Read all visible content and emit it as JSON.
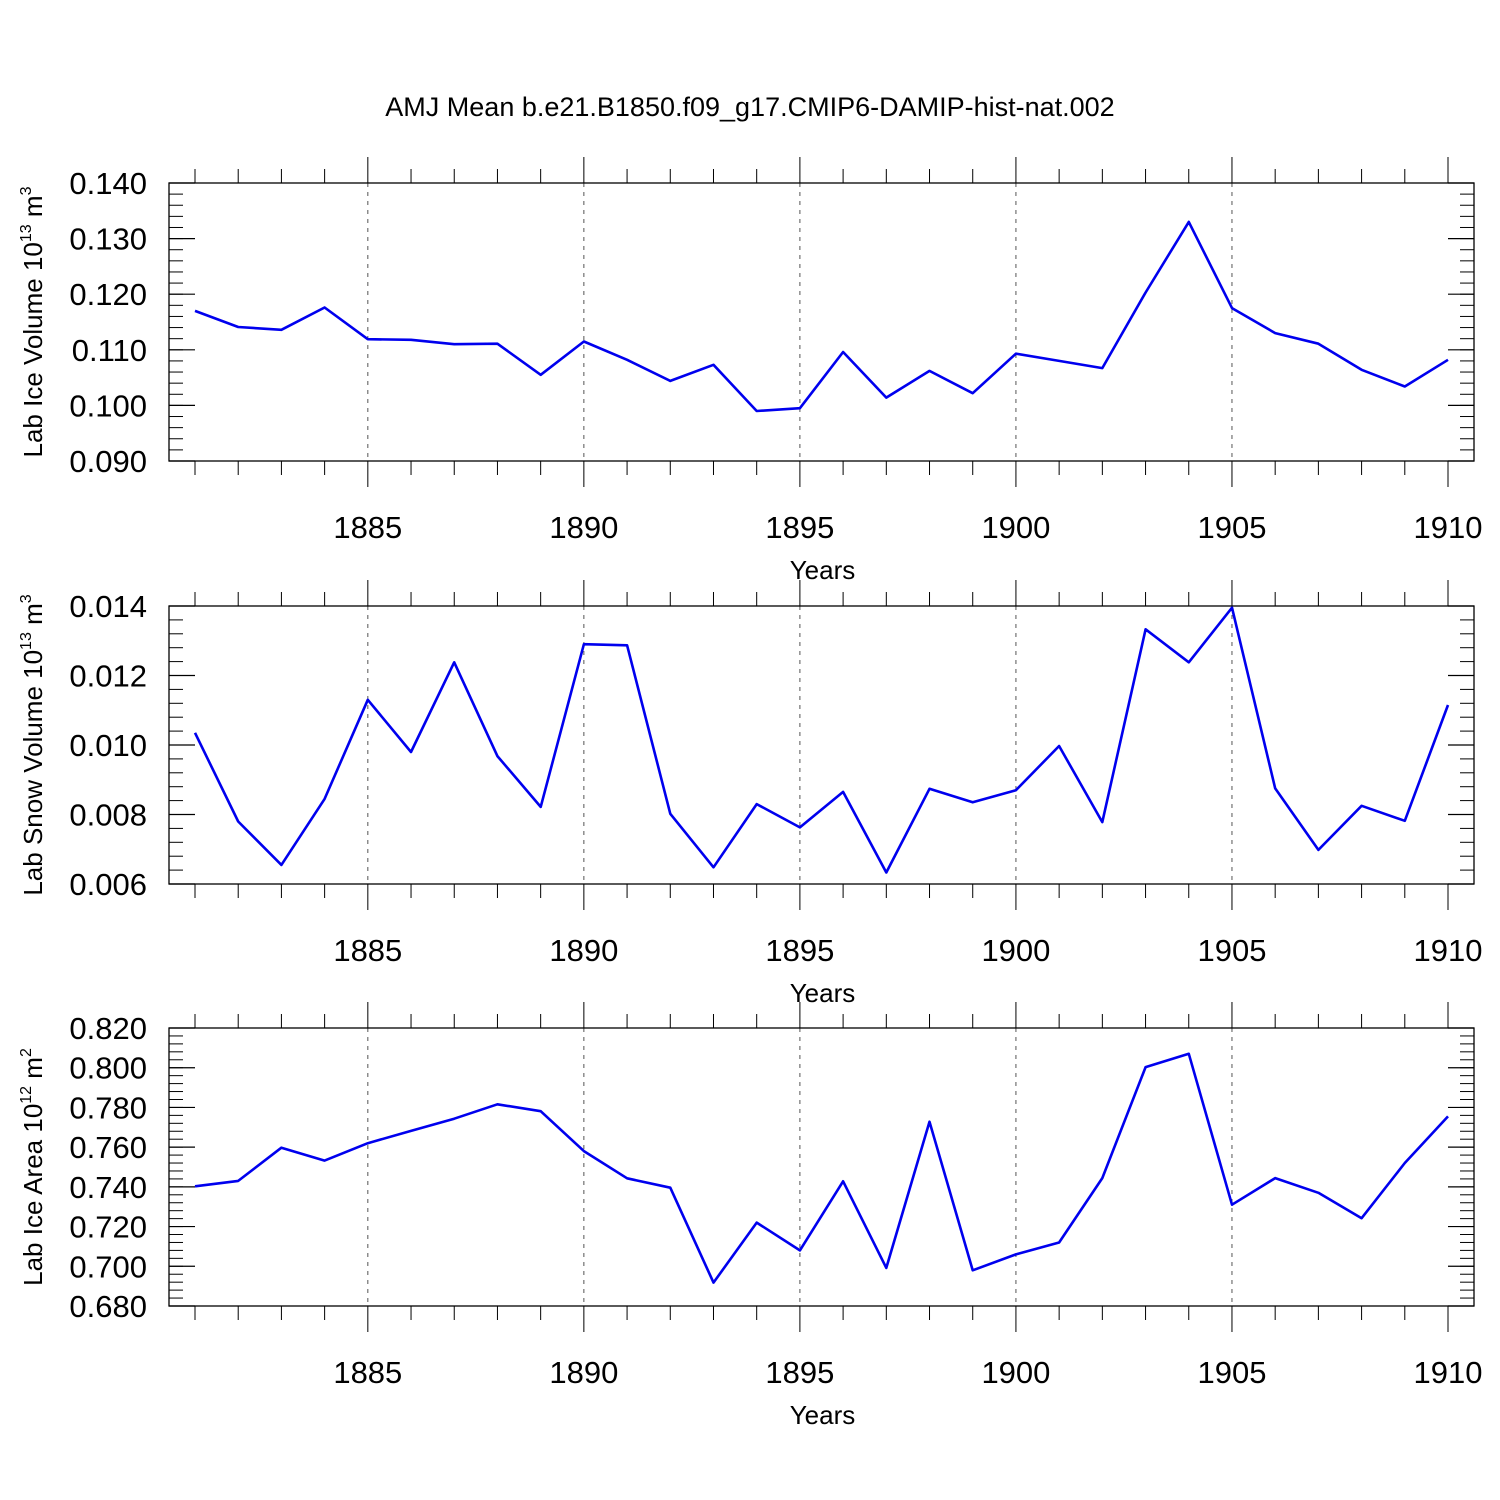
{
  "title": "AMJ Mean b.e21.B1850.f09_g17.CMIP6-DAMIP-hist-nat.002",
  "line_color": "#0000ee",
  "chart_data": [
    {
      "type": "line",
      "title": "AMJ Mean b.e21.B1850.f09_g17.CMIP6-DAMIP-hist-nat.002",
      "ylabel": {
        "text": "Lab Ice Volume 10",
        "exp": "13",
        "unit": " m",
        "unit_exp": "3"
      },
      "xlabel": "Years",
      "xlim": [
        1881,
        1910
      ],
      "ylim": [
        0.09,
        0.14
      ],
      "xticks": [
        1885,
        1890,
        1895,
        1900,
        1905,
        1910
      ],
      "xtick_labels": [
        "1885",
        "1890",
        "1895",
        "1900",
        "1905",
        "1910"
      ],
      "yticks": [
        0.09,
        0.1,
        0.11,
        0.12,
        0.13,
        0.14
      ],
      "ytick_labels": [
        "0.090",
        "0.100",
        "0.110",
        "0.120",
        "0.130",
        "0.140"
      ],
      "y_minor_step": 0.002,
      "grid": "dashed vertical at major x ticks",
      "series": [
        {
          "name": "Lab Ice Volume",
          "x": [
            1881,
            1882,
            1883,
            1884,
            1885,
            1886,
            1887,
            1888,
            1889,
            1890,
            1891,
            1892,
            1893,
            1894,
            1895,
            1896,
            1897,
            1898,
            1899,
            1900,
            1901,
            1902,
            1903,
            1904,
            1905,
            1906,
            1907,
            1908,
            1909,
            1910
          ],
          "y": [
            0.117,
            0.1141,
            0.1136,
            0.1176,
            0.1119,
            0.1118,
            0.111,
            0.1111,
            0.1055,
            0.1115,
            0.1082,
            0.1044,
            0.1073,
            0.099,
            0.0995,
            0.1096,
            0.1014,
            0.1062,
            0.1022,
            0.1093,
            0.108,
            0.1067,
            0.1203,
            0.133,
            0.1175,
            0.113,
            0.1111,
            0.1064,
            0.1034,
            0.1082
          ]
        }
      ]
    },
    {
      "type": "line",
      "ylabel": {
        "text": "Lab Snow Volume 10",
        "exp": "13",
        "unit": " m",
        "unit_exp": "3"
      },
      "xlabel": "Years",
      "xlim": [
        1881,
        1910
      ],
      "ylim": [
        0.006,
        0.014
      ],
      "xticks": [
        1885,
        1890,
        1895,
        1900,
        1905,
        1910
      ],
      "xtick_labels": [
        "1885",
        "1890",
        "1895",
        "1900",
        "1905",
        "1910"
      ],
      "yticks": [
        0.006,
        0.008,
        0.01,
        0.012,
        0.014
      ],
      "ytick_labels": [
        "0.006",
        "0.008",
        "0.010",
        "0.012",
        "0.014"
      ],
      "y_minor_step": 0.0004,
      "grid": "dashed vertical at major x ticks",
      "series": [
        {
          "name": "Lab Snow Volume",
          "x": [
            1881,
            1882,
            1883,
            1884,
            1885,
            1886,
            1887,
            1888,
            1889,
            1890,
            1891,
            1892,
            1893,
            1894,
            1895,
            1896,
            1897,
            1898,
            1899,
            1900,
            1901,
            1902,
            1903,
            1904,
            1905,
            1906,
            1907,
            1908,
            1909,
            1910
          ],
          "y": [
            0.01035,
            0.0078,
            0.00655,
            0.00845,
            0.0113,
            0.0098,
            0.01238,
            0.00968,
            0.00822,
            0.0129,
            0.01287,
            0.00802,
            0.00648,
            0.0083,
            0.00763,
            0.00865,
            0.00633,
            0.00874,
            0.00835,
            0.0087,
            0.00997,
            0.00778,
            0.01333,
            0.01238,
            0.01395,
            0.00875,
            0.00698,
            0.00825,
            0.00782,
            0.01115
          ]
        }
      ]
    },
    {
      "type": "line",
      "ylabel": {
        "text": "Lab Ice Area 10",
        "exp": "12",
        "unit": " m",
        "unit_exp": "2"
      },
      "xlabel": "Years",
      "xlim": [
        1881,
        1910
      ],
      "ylim": [
        0.68,
        0.82
      ],
      "xticks": [
        1885,
        1890,
        1895,
        1900,
        1905,
        1910
      ],
      "xtick_labels": [
        "1885",
        "1890",
        "1895",
        "1900",
        "1905",
        "1910"
      ],
      "yticks": [
        0.68,
        0.7,
        0.72,
        0.74,
        0.76,
        0.78,
        0.8,
        0.82
      ],
      "ytick_labels": [
        "0.680",
        "0.700",
        "0.720",
        "0.740",
        "0.760",
        "0.780",
        "0.800",
        "0.820"
      ],
      "y_minor_step": 0.004,
      "grid": "dashed vertical at major x ticks",
      "series": [
        {
          "name": "Lab Ice Area",
          "x": [
            1881,
            1882,
            1883,
            1884,
            1885,
            1886,
            1887,
            1888,
            1889,
            1890,
            1891,
            1892,
            1893,
            1894,
            1895,
            1896,
            1897,
            1898,
            1899,
            1900,
            1901,
            1902,
            1903,
            1904,
            1905,
            1906,
            1907,
            1908,
            1909,
            1910
          ],
          "y": [
            0.7403,
            0.743,
            0.7597,
            0.7532,
            0.762,
            0.7682,
            0.7743,
            0.7816,
            0.7781,
            0.758,
            0.7443,
            0.7396,
            0.6918,
            0.722,
            0.708,
            0.7428,
            0.6992,
            0.7728,
            0.698,
            0.706,
            0.712,
            0.7444,
            0.8003,
            0.807,
            0.731,
            0.7444,
            0.737,
            0.7242,
            0.752,
            0.7755
          ]
        }
      ]
    }
  ]
}
